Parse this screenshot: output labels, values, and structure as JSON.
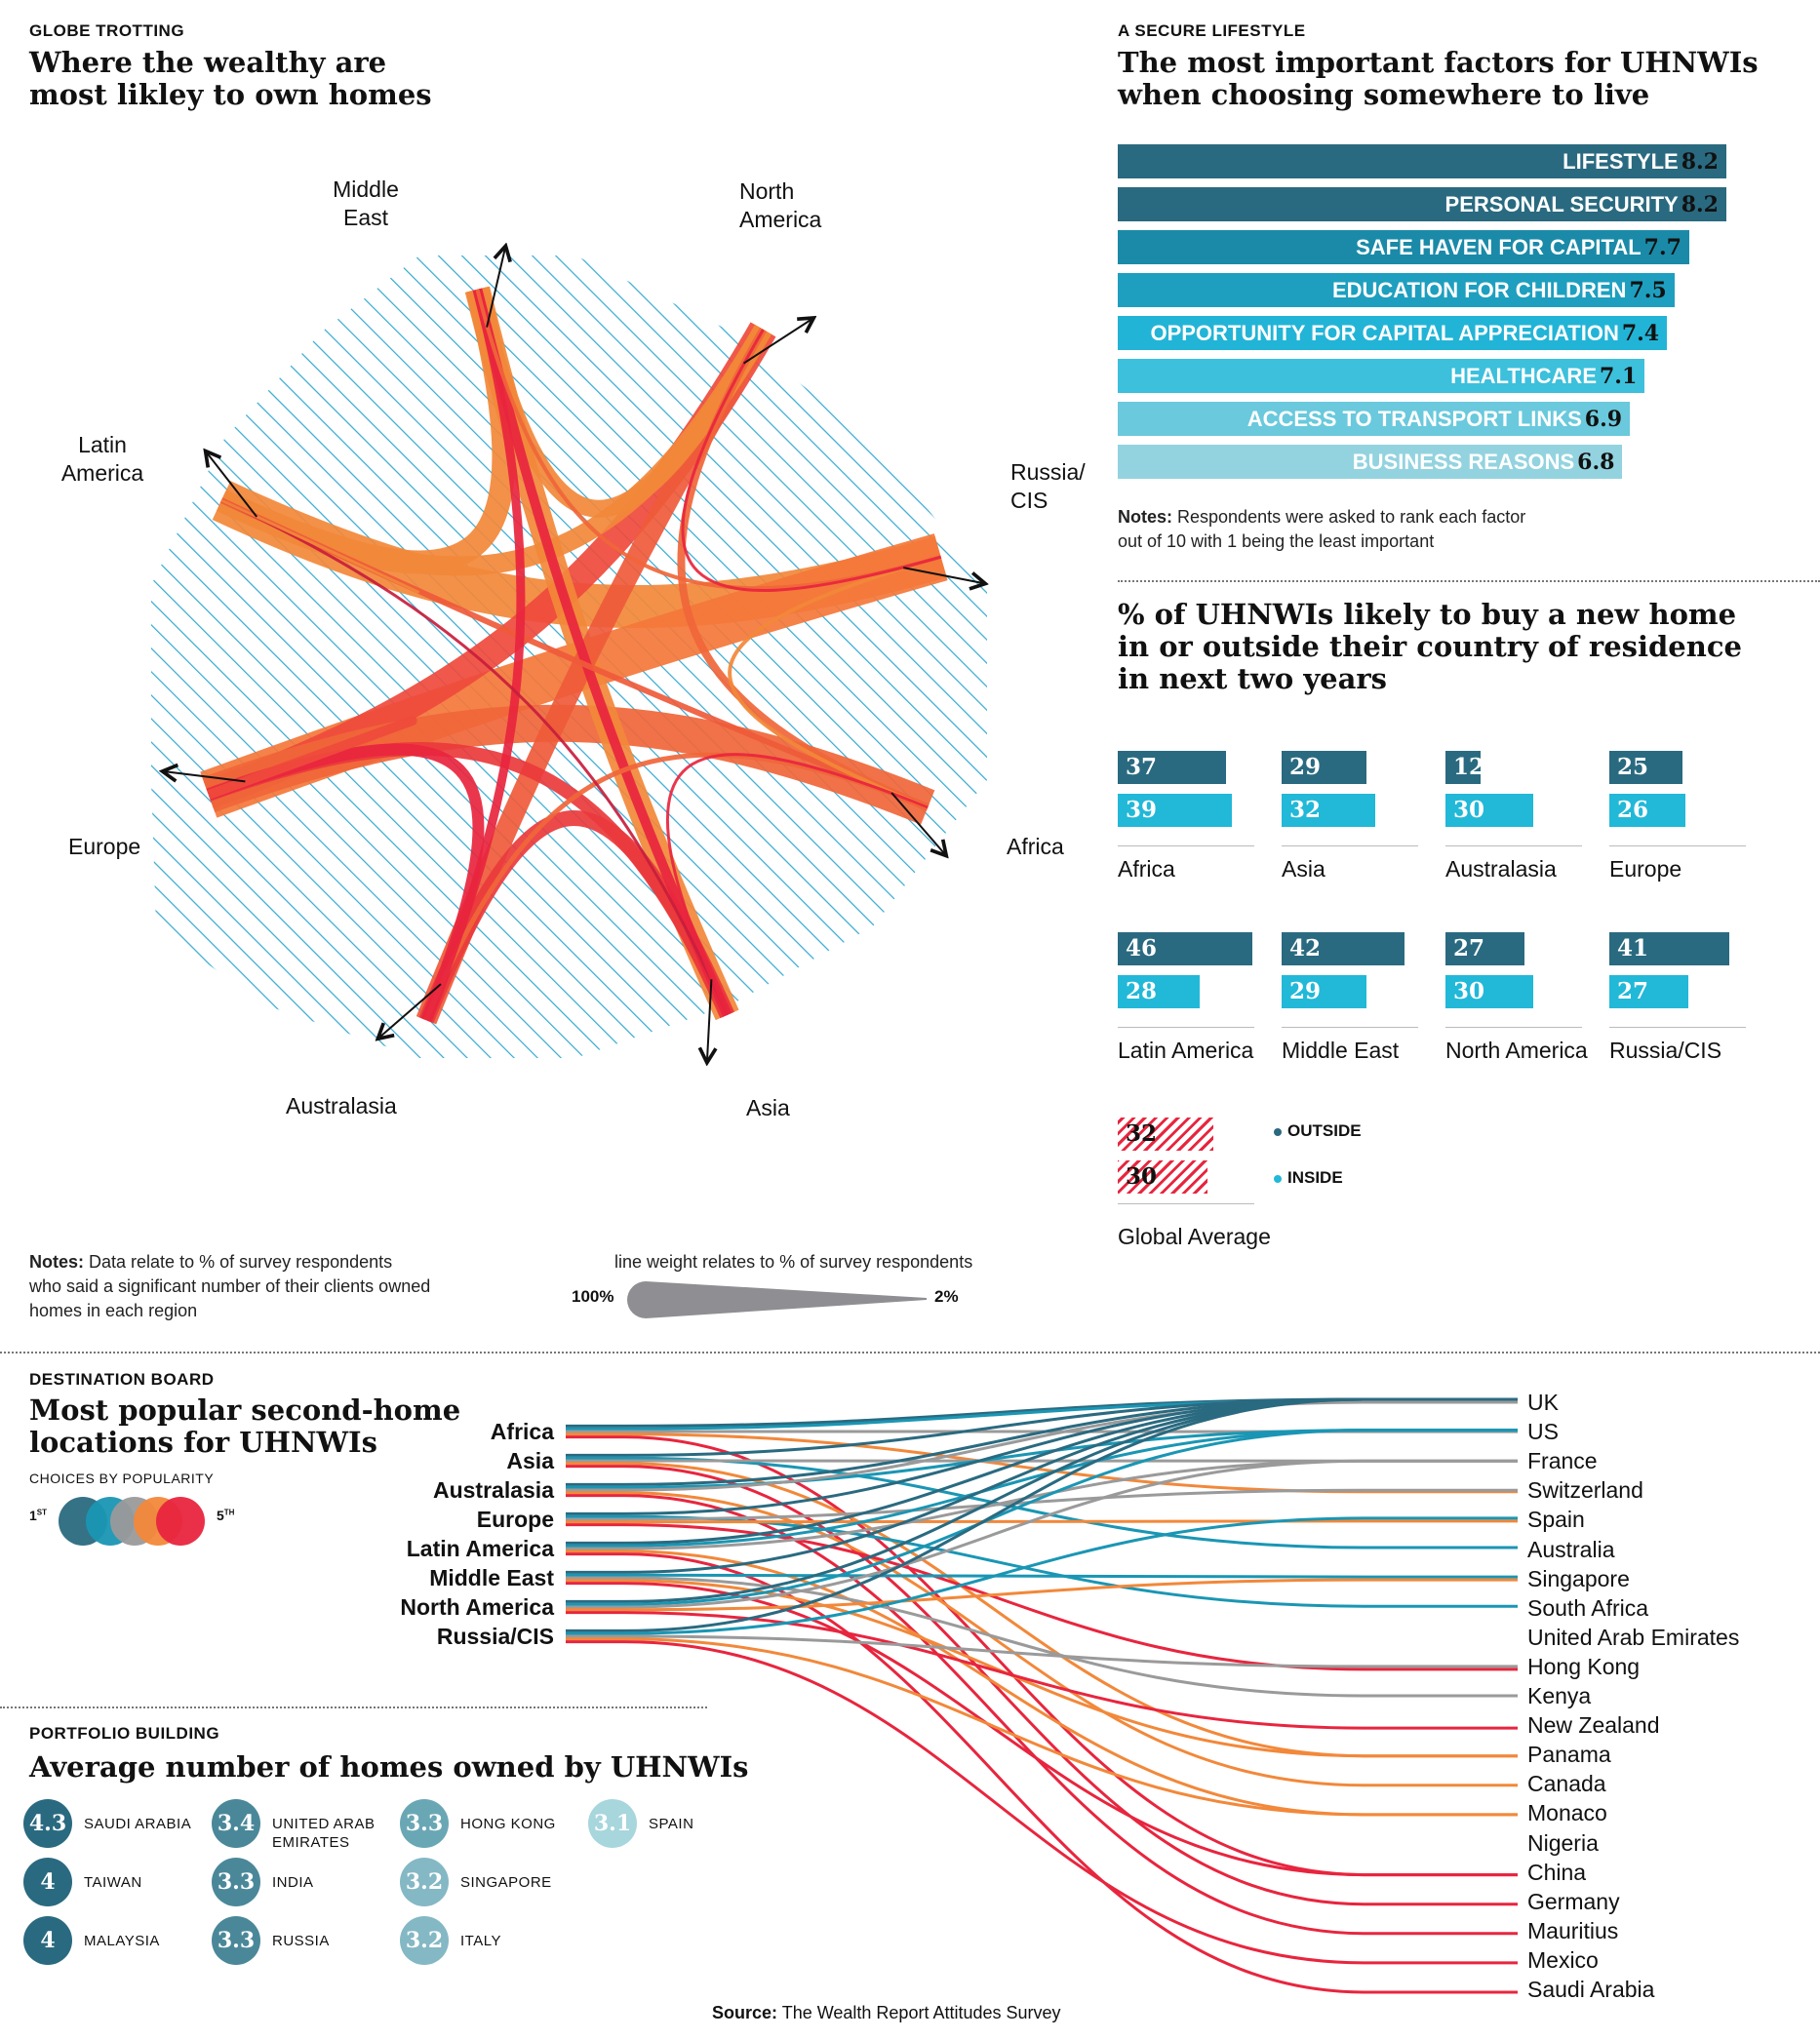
{
  "globe": {
    "kicker": "GLOBE TROTTING",
    "title_line1": "Where the wealthy are",
    "title_line2": "most likley to own homes",
    "regions": {
      "middle_east": [
        "Middle",
        "East"
      ],
      "north_america": [
        "North",
        "America"
      ],
      "latin_america": [
        "Latin",
        "America"
      ],
      "russia": [
        "Russia/",
        "CIS"
      ],
      "europe": "Europe",
      "africa": "Africa",
      "australasia": "Australasia",
      "asia": "Asia"
    },
    "notes_bold": "Notes:",
    "notes_text": " Data relate to % of survey respondents",
    "notes_line2": "who said a significant number of their clients owned",
    "notes_line3": "homes in each region",
    "legend_caption": "line weight relates to % of survey respondents",
    "legend_max": "100%",
    "legend_min": "2%"
  },
  "lifestyle": {
    "kicker": "A SECURE LIFESTYLE",
    "title_line1": "The most important factors for UHNWIs",
    "title_line2": "when choosing somewhere to live",
    "notes_bold": "Notes:",
    "notes_text": " Respondents were asked to rank each factor",
    "notes_line2": "out of 10 with 1 being the least important"
  },
  "buy": {
    "title_line1": "% of UHNWIs likely to buy a new home",
    "title_line2": "in or outside their country of residence",
    "title_line3": "in next two years",
    "global_outside": "32",
    "global_inside": "30",
    "global_label": "Global Average",
    "legend_outside": "OUTSIDE",
    "legend_inside": "INSIDE"
  },
  "destination": {
    "kicker": "DESTINATION BOARD",
    "title_line1": "Most popular second-home",
    "title_line2": "locations for UHNWIs",
    "legend_caption": "CHOICES BY POPULARITY",
    "legend_first": "1",
    "legend_first_sup": "ST",
    "legend_last": "5",
    "legend_last_sup": "TH"
  },
  "portfolio": {
    "kicker": "PORTFOLIO BUILDING",
    "title": "Average number of homes owned by UHNWIs"
  },
  "source_bold": "Source:",
  "source_text": " The Wealth Report Attitudes Survey",
  "colors": {
    "dark_teal": "#2a6a80",
    "teal": "#1a96b4",
    "light_teal": "#22b8d8",
    "gray": "#9a9a9a",
    "orange": "#f2883a",
    "red": "#e8253e",
    "hatch": "#34a9d1"
  },
  "chart_data": [
    {
      "type": "bar",
      "title": "The most important factors for UHNWIs when choosing somewhere to live",
      "categories": [
        "LIFESTYLE",
        "PERSONAL SECURITY",
        "SAFE HAVEN FOR CAPITAL",
        "EDUCATION FOR CHILDREN",
        "OPPORTUNITY FOR CAPITAL APPRECIATION",
        "HEALTHCARE",
        "ACCESS TO TRANSPORT LINKS",
        "BUSINESS REASONS"
      ],
      "values": [
        8.2,
        8.2,
        7.7,
        7.5,
        7.4,
        7.1,
        6.9,
        6.8
      ],
      "labels": [
        "8.2",
        "8.2",
        "7.7",
        "7.5",
        "7.4",
        "7.1",
        "6.9",
        "6.8"
      ],
      "bar_colors": [
        "#2a6a80",
        "#2a6a80",
        "#1a8aa8",
        "#1e9fbf",
        "#22b4d6",
        "#3cc0dc",
        "#6ac9dc",
        "#93d3df"
      ]
    },
    {
      "type": "bar",
      "title": "% of UHNWIs likely to buy a new home in or outside their country of residence in next two years",
      "categories": [
        "Africa",
        "Asia",
        "Australasia",
        "Europe",
        "Latin America",
        "Middle East",
        "North America",
        "Russia/CIS"
      ],
      "series": [
        {
          "name": "OUTSIDE",
          "values": [
            37,
            29,
            12,
            25,
            46,
            42,
            27,
            41
          ],
          "labels": [
            "37",
            "29",
            "12",
            "25",
            "46",
            "42",
            "27",
            "41"
          ]
        },
        {
          "name": "INSIDE",
          "values": [
            39,
            32,
            30,
            26,
            28,
            29,
            30,
            27
          ],
          "labels": [
            "39",
            "32",
            "30",
            "26",
            "28",
            "29",
            "30",
            "27"
          ]
        }
      ]
    },
    {
      "type": "chord",
      "title": "Where the wealthy are most likley to own homes",
      "nodes": [
        "Middle East",
        "North America",
        "Russia/CIS",
        "Africa",
        "Asia",
        "Australasia",
        "Europe",
        "Latin America"
      ]
    },
    {
      "type": "line",
      "title": "Most popular second-home locations for UHNWIs",
      "sources": [
        "Africa",
        "Asia",
        "Australasia",
        "Europe",
        "Latin America",
        "Middle East",
        "North America",
        "Russia/CIS"
      ],
      "destinations": [
        "UK",
        "US",
        "France",
        "Switzerland",
        "Spain",
        "Australia",
        "Singapore",
        "South Africa",
        "United Arab Emirates",
        "Hong Kong",
        "Kenya",
        "New Zealand",
        "Panama",
        "Canada",
        "Monaco",
        "Nigeria",
        "China",
        "Germany",
        "Mauritius",
        "Mexico",
        "Saudi Arabia"
      ]
    },
    {
      "type": "table",
      "title": "Average number of homes owned by UHNWIs",
      "rows": [
        {
          "country": "SAUDI ARABIA",
          "value": "4.3"
        },
        {
          "country": "TAIWAN",
          "value": "4"
        },
        {
          "country": "MALAYSIA",
          "value": "4"
        },
        {
          "country": "UNITED ARAB EMIRATES",
          "value": "3.4"
        },
        {
          "country": "INDIA",
          "value": "3.3"
        },
        {
          "country": "RUSSIA",
          "value": "3.3"
        },
        {
          "country": "HONG KONG",
          "value": "3.3"
        },
        {
          "country": "SINGAPORE",
          "value": "3.2"
        },
        {
          "country": "ITALY",
          "value": "3.2"
        },
        {
          "country": "SPAIN",
          "value": "3.1"
        }
      ]
    }
  ]
}
